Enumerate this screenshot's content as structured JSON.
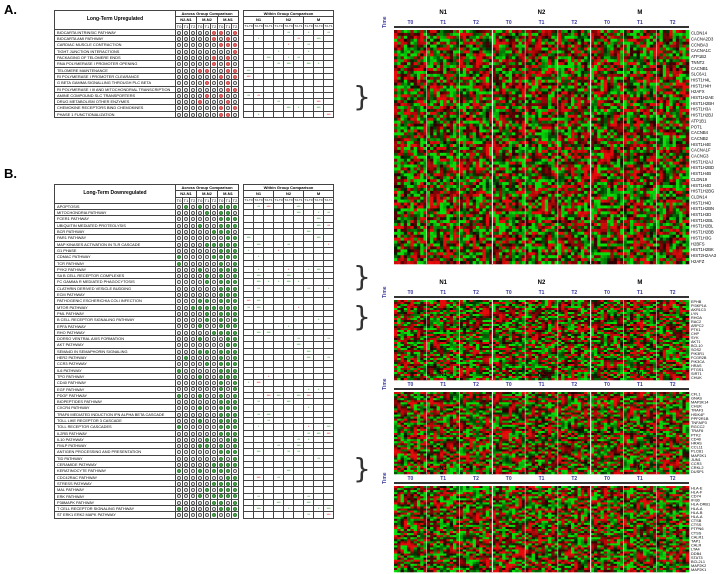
{
  "figure": {
    "panelA": "A.",
    "panelB": "B."
  },
  "tableA": {
    "title": "Long-Term Upregulated",
    "across": "Across Group Comparison",
    "within": "Within Group Comparison",
    "groupsAcross": [
      "N2-N1",
      "M-N2",
      "M-N1"
    ],
    "timepoints": [
      "T0",
      "T1",
      "T2"
    ],
    "groupsWithin": [
      "N1",
      "N2",
      "M"
    ],
    "withinCols": [
      "T1-T0",
      "T2-T0",
      "T2-T1",
      "T1-T0",
      "T2-T0",
      "T2-T1",
      "T1-T0",
      "T2-T0",
      "T2-T1"
    ],
    "rows": [
      "BIOCARTA INTRINSIC PATHWAY",
      "BIOCARTA AMI PATHWAY",
      "CARDIAC MUSCLE CONTRACTION",
      "TIGHT JUNCTION INTERACTIONS",
      "PACKAGING OF TELOMERE ENDS",
      "RNA POLYMERASE I PROMOTER OPENING",
      "TELOMERE MAINTENANCE",
      "RI POLYMERASE I PROMOTER CLEARANCE",
      "G BETA GAMMA SIGNALLING THROUGH PLC BETA",
      "RI POLYMERASE I III AND MITOCHONDRIAL TRANSCRIPTION",
      "AMINE COMPOUND SLC TRANSPORTERS",
      "DRUG METABOLISM OTHER ENZYMES",
      "CHEMOKINE RECEPTORS BIND CHEMOKINES",
      "PHASE 1 FUNCTIONALIZATION"
    ]
  },
  "tableB": {
    "title": "Long-Term Downregulated",
    "across": "Across Group Comparison",
    "within": "Within Group Comparison",
    "groupsAcross": [
      "N2-N1",
      "M-N2",
      "M-N1"
    ],
    "timepoints": [
      "T0",
      "T1",
      "T2"
    ],
    "groupsWithin": [
      "N1",
      "N2",
      "M"
    ],
    "withinCols": [
      "T1-T0",
      "T2-T0",
      "T2-T1",
      "T1-T0",
      "T2-T0",
      "T2-T1",
      "T1-T0",
      "T2-T0",
      "T2-T1"
    ],
    "rows": [
      "APOPTOSIS",
      "MITOCHONDRIA PATHWAY",
      "FCER1 PATHWAY",
      "UBIQUITIN MEDIATED PROTEOLYSIS",
      "BCR PATHWAY",
      "PAR1 PATHWAY",
      "MAP KINASES ACTIVATION IN TLR CASCADE",
      "G1 PHASE",
      "CDMAC PATHWAY",
      "TCR PATHWAY",
      "PYK2 PATHWAY",
      "SA B CELL RECEPTOR COMPLEXES",
      "FC GAMMA R MEDIATED PHAGOCYTOSIS",
      "CLATHRIN DERIVED VESICLE BUDDING",
      "ECM PATHWAY",
      "PATHOGENIC ESCHERICHIA COLI INFECTION",
      "MTOR PATHWAY",
      "PML PATHWAY",
      "B CELL RECEPTOR SIGNALING PATHWAY",
      "EPFA PATHWAY",
      "RHO PATHWAY",
      "DORSO VENTRAL AXIS FORMATION",
      "AKT PATHWAY",
      "SEMA4D IN SEMAPHORIN SIGNALING",
      "HER2 PATHWAY",
      "CCR3 PATHWAY",
      "IL6 PATHWAY",
      "TPO PATHWAY",
      "CD40 PATHWAY",
      "EGF PATHWAY",
      "PDGF PATHWAY",
      "BIOPEPTIDES PATHWAY",
      "CXCR4 PATHWAY",
      "TRAF6 MEDIATED INDUCTION  IFN ALPHA BETA CASCADE",
      "TOLL LIKE RECEPTOR 3 CASCADE",
      "TOLL RECEPTOR CASCADES",
      "IL2RB PATHWAY",
      "IL10 PATHWAY",
      "FMLP PATHWAY",
      "ANTIGEN PROCESSING AND PRESENTATION",
      "TID PATHWAY",
      "CERAMIDE PATHWAY",
      "KERATINOCYTE PATHWAY",
      "CDC42RAC PATHWAY",
      "STRESS PATHWAY",
      "MAL PATHWAY",
      "ERK PATHWAY",
      "P38MAPK PATHWAY",
      "T CELL RECEPTOR SIGNALING PATHWAY",
      "ST ERK1 ERK2 MAPK PATHWAY"
    ]
  },
  "heatmaps": [
    {
      "timeLabel": "Time",
      "groups": [
        "N1",
        "N2",
        "M"
      ],
      "times": [
        "T0",
        "T1",
        "T2",
        "T0",
        "T1",
        "T2",
        "T0",
        "T1",
        "T2"
      ],
      "genes": [
        "CLDN14",
        "CACNA2D3",
        "CCNBA3",
        "CACNA1C",
        "ATP1B2",
        "TNNT2",
        "CACNB1",
        "SLC6A1",
        "HIST1H4L",
        "HIST1H4H",
        "H2AFX",
        "HIST1H2AE",
        "HIST1H2BH",
        "HIST1H3A",
        "HIST1H2BJ",
        "ATP1B1",
        "POT1",
        "CACNB4",
        "CACNB2",
        "HIST1H4E",
        "CACNA1F",
        "CACNG3",
        "HIST1H2AJ",
        "HIST1H2BD",
        "HIST1H4B",
        "CLDN19",
        "HIST1H4D",
        "HIST1H2BG",
        "CLDN14",
        "HIST1H4D",
        "HIST1H2BN",
        "HIST1H3D",
        "HIST1H2BL",
        "HIST1H2BL",
        "HIST1H2BB",
        "HIST1H3G",
        "H2BFS",
        "HIST1H2BK",
        "HIST2H2AA3",
        "H2AFZ"
      ]
    },
    {
      "timeLabel": "Time",
      "groups": [
        "N1",
        "N2",
        "M"
      ],
      "times": [
        "T0",
        "T1",
        "T2",
        "T0",
        "T1",
        "T2",
        "T0",
        "T1",
        "T2"
      ],
      "genes": [
        "EPHB",
        "PI3KP1A",
        "AKR1C3",
        "LYN",
        "RHOA",
        "RAC2",
        "ARPC2",
        "PTK1",
        "CHP",
        "SYK",
        "AKT1",
        "BCL10",
        "SOS2",
        "PIK3R1",
        "FCGR2B",
        "PIK3CA",
        "HRAS",
        "PTGS1",
        "SIRT1",
        "CHUK"
      ]
    },
    {
      "timeLabel": "Time",
      "groups": [
        "N1",
        "N2",
        "M"
      ],
      "times": [
        "T0",
        "T1",
        "T2",
        "T0",
        "T1",
        "T2",
        "T0",
        "T1",
        "T2"
      ],
      "genes": [
        "CFL1",
        "GNAS",
        "MAP3K14",
        "CHUK",
        "TRAF3",
        "HSIK4F",
        "PPP2R1B",
        "TNFAIP3",
        "RGCC2",
        "TRAF6",
        "PTK2",
        "CD40",
        "HRAS",
        "CCL11",
        "PLCB1",
        "MAP2K1",
        "JUN1",
        "CCR3",
        "CRKL2",
        "DUSP1"
      ]
    },
    {
      "timeLabel": "Time",
      "groups": [
        "N1",
        "N2",
        "M"
      ],
      "times": [
        "T0",
        "T1",
        "T2",
        "T0",
        "T1",
        "T2",
        "T0",
        "T1",
        "T2"
      ],
      "genes": [
        "HLA-E",
        "HLA-F",
        "CD74",
        "IFI30",
        "HLA-DRB1",
        "HLA-A",
        "HLA-B",
        "HLA-A",
        "CTSB",
        "CTSS",
        "PTPN6",
        "CTSS",
        "CALR1",
        "TAP1",
        "CALR",
        "LTA4",
        "DDB4",
        "STAT3",
        "BCL2L1",
        "MAP2K2",
        "MAP2K1"
      ]
    }
  ],
  "colors": {
    "up": "#e5726f",
    "down": "#4caf50",
    "heatRed": "#d01818",
    "heatGreen": "#18b018",
    "heatBlack": "#000000"
  }
}
